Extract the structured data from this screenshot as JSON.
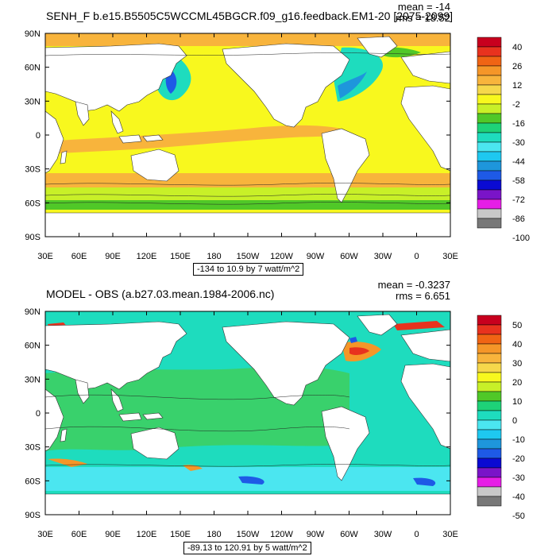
{
  "panels": [
    {
      "title": "SENH_F b.e15.B5505C5WCCML45BGCR.f09_g16.feedback.EM1-20 [2075-2099]",
      "mean": "mean = -14",
      "rms": "rms = 18.52",
      "range_label": "-134 to 10.9 by 7 watt/m^2",
      "colorbar_labels": [
        "40",
        "26",
        "12",
        "-2",
        "-16",
        "-30",
        "-44",
        "-58",
        "-72",
        "-86",
        "-100"
      ],
      "colorbar_colors": [
        "#c8001e",
        "#e8321e",
        "#f06414",
        "#f59628",
        "#f8b43c",
        "#f6d84b",
        "#f8f81e",
        "#c8f028",
        "#50c828",
        "#1ed278",
        "#1edcbe",
        "#4be6f0",
        "#1ec8f0",
        "#1e96dc",
        "#1e5ae6",
        "#0a0ad2",
        "#7a14c8",
        "#e61ee6",
        "#c8c8c8",
        "#787878"
      ]
    },
    {
      "title": "MODEL - OBS (a.b27.03.mean.1984-2006.nc)",
      "mean": "mean = -0.3237",
      "rms": "rms = 6.651",
      "range_label": "-89.13 to 120.91 by 5 watt/m^2",
      "colorbar_labels": [
        "50",
        "40",
        "30",
        "20",
        "10",
        "0",
        "-10",
        "-20",
        "-30",
        "-40",
        "-50"
      ],
      "colorbar_colors": [
        "#c8001e",
        "#e8321e",
        "#f06414",
        "#f59628",
        "#f8b43c",
        "#f6d84b",
        "#f8f81e",
        "#c8f028",
        "#50c828",
        "#1ed278",
        "#1edcbe",
        "#4be6f0",
        "#1ec8f0",
        "#1e96dc",
        "#1e5ae6",
        "#0a0ad2",
        "#7a14c8",
        "#e61ee6",
        "#c8c8c8",
        "#787878"
      ]
    }
  ],
  "lat_labels": [
    "90N",
    "60N",
    "30N",
    "0",
    "30S",
    "60S",
    "90S"
  ],
  "lon_labels": [
    "30E",
    "60E",
    "90E",
    "120E",
    "150E",
    "180",
    "150W",
    "120W",
    "90W",
    "60W",
    "30W",
    "0",
    "30E"
  ],
  "colors": {
    "ocean_warm": "#f8f81e",
    "ocean_band": "#f8b43c",
    "ocean_cool": "#50c828",
    "ocean_cyan": "#1edcbe",
    "land": "#ffffff"
  }
}
